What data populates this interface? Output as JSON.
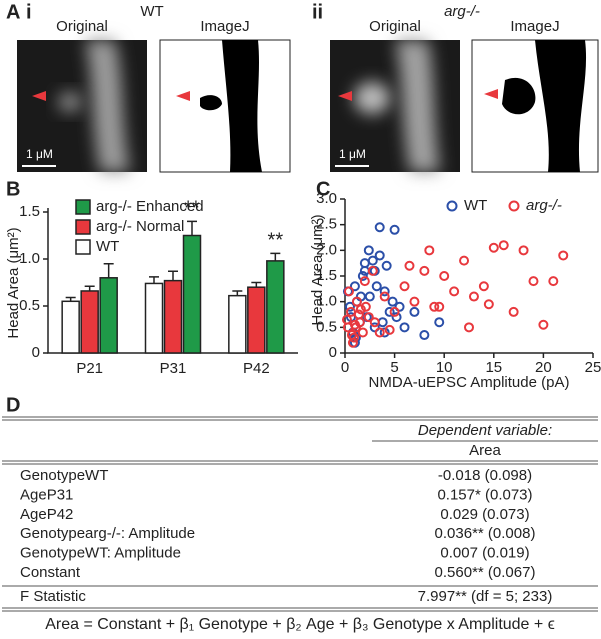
{
  "panel_a": {
    "label": "A",
    "panels": [
      {
        "numeral": "i",
        "title": "WT",
        "image_titles": [
          "Original",
          "ImageJ"
        ],
        "scale_bar": "1 μM"
      },
      {
        "numeral": "ii",
        "title": "arg-/-",
        "image_titles": [
          "Original",
          "ImageJ"
        ],
        "scale_bar": "1 μM"
      }
    ]
  },
  "chart_data": [
    {
      "type": "bar",
      "panel_label": "B",
      "ylabel": "Head Area (μm²)",
      "categories": [
        "P21",
        "P31",
        "P42"
      ],
      "series": [
        {
          "name": "WT",
          "color": "#ffffff",
          "values": [
            0.55,
            0.74,
            0.61
          ],
          "errors": [
            0.04,
            0.07,
            0.05
          ]
        },
        {
          "name": "arg-/- Normal",
          "color": "#e8383d",
          "values": [
            0.66,
            0.77,
            0.7
          ],
          "errors": [
            0.05,
            0.1,
            0.05
          ]
        },
        {
          "name": "arg-/- Enhanced",
          "color": "#1f9a48",
          "values": [
            0.8,
            1.25,
            0.98
          ],
          "errors": [
            0.15,
            0.15,
            0.08
          ],
          "significance": [
            null,
            "**",
            "**"
          ]
        }
      ],
      "ylim": [
        0,
        1.5
      ],
      "yticks": [
        0,
        0.5,
        {
          "value": 1,
          "label": "1.0"
        },
        1.5
      ]
    },
    {
      "type": "scatter",
      "panel_label": "C",
      "xlabel": "NMDA-uEPSC Amplitude (pA)",
      "ylabel": "Head Area (μm²)",
      "series": [
        {
          "name": "WT",
          "color": "#2b4fa8",
          "x": [
            0.5,
            1,
            1.5,
            2,
            2.5,
            3,
            3.5,
            4,
            4.5,
            5,
            0.8,
            1.2,
            1.8,
            2.2,
            2.8,
            3.2,
            3.8,
            4.2,
            5.5,
            6,
            0.3,
            0.6,
            1.1,
            1.6,
            2.4,
            3,
            4,
            4.8,
            5.2,
            2,
            3.5,
            1,
            7,
            8,
            9.5
          ],
          "values": [
            0.9,
            1.3,
            0.6,
            1.6,
            1.1,
            0.5,
            1.9,
            1.2,
            0.8,
            2.4,
            0.4,
            1.0,
            1.5,
            0.7,
            1.8,
            1.3,
            0.6,
            1.7,
            0.9,
            0.5,
            1.2,
            0.7,
            0.3,
            1.1,
            2.0,
            1.6,
            0.4,
            1.0,
            0.7,
            1.75,
            2.45,
            0.2,
            0.8,
            0.35,
            0.6
          ]
        },
        {
          "name": "arg-/-",
          "color": "#e8383d",
          "x": [
            0.3,
            0.6,
            0.9,
            1.2,
            1.5,
            1.8,
            2.1,
            2.4,
            0.4,
            0.8,
            1.1,
            1.4,
            0.2,
            0.7,
            1.0,
            1.6,
            2,
            3,
            4,
            5,
            6,
            7,
            8,
            9,
            10,
            11,
            12,
            13,
            14,
            15,
            16,
            17,
            18,
            19,
            20,
            21,
            22,
            14.5,
            12.5,
            9.5,
            8.5,
            6.5,
            3.5,
            2.8,
            4.5
          ],
          "values": [
            0.5,
            0.8,
            0.3,
            1.0,
            0.6,
            0.4,
            0.9,
            0.7,
            1.2,
            0.2,
            0.5,
            0.75,
            0.65,
            0.35,
            0.55,
            0.85,
            1.4,
            0.6,
            1.1,
            0.8,
            1.3,
            1.0,
            1.6,
            0.9,
            1.5,
            1.2,
            1.8,
            1.1,
            1.3,
            2.05,
            2.1,
            0.8,
            2.0,
            1.4,
            0.55,
            1.4,
            1.9,
            0.95,
            0.5,
            0.9,
            2.0,
            1.7,
            0.4,
            1.6,
            0.45
          ]
        }
      ],
      "xlim": [
        0,
        25
      ],
      "xticks": [
        0,
        5,
        10,
        15,
        20,
        25
      ],
      "ylim": [
        0,
        3
      ],
      "yticks": [
        0,
        0.5,
        {
          "value": 1,
          "label": "1.0"
        },
        1.5,
        {
          "value": 2,
          "label": "2.0"
        },
        2.5,
        {
          "value": 3,
          "label": "3.0"
        }
      ]
    }
  ],
  "panel_d": {
    "label": "D",
    "header": [
      "Dependent variable:",
      "Area"
    ],
    "rows": [
      [
        "GenotypeWT",
        "-0.018 (0.098)"
      ],
      [
        "AgeP31",
        "0.157* (0.073)"
      ],
      [
        "AgeP42",
        "0.029 (0.073)"
      ],
      [
        "Genotypearg-/-: Amplitude",
        "0.036** (0.008)"
      ],
      [
        "GenotypeWT: Amplitude",
        "0.007 (0.019)"
      ],
      [
        "Constant",
        "0.560** (0.067)"
      ]
    ],
    "statistic": [
      "F Statistic",
      "7.997** (df = 5; 233)"
    ],
    "equation": "Area = Constant + β₁ Genotype + β₂ Age + β₃ Genotype x Amplitude + ϵ"
  }
}
